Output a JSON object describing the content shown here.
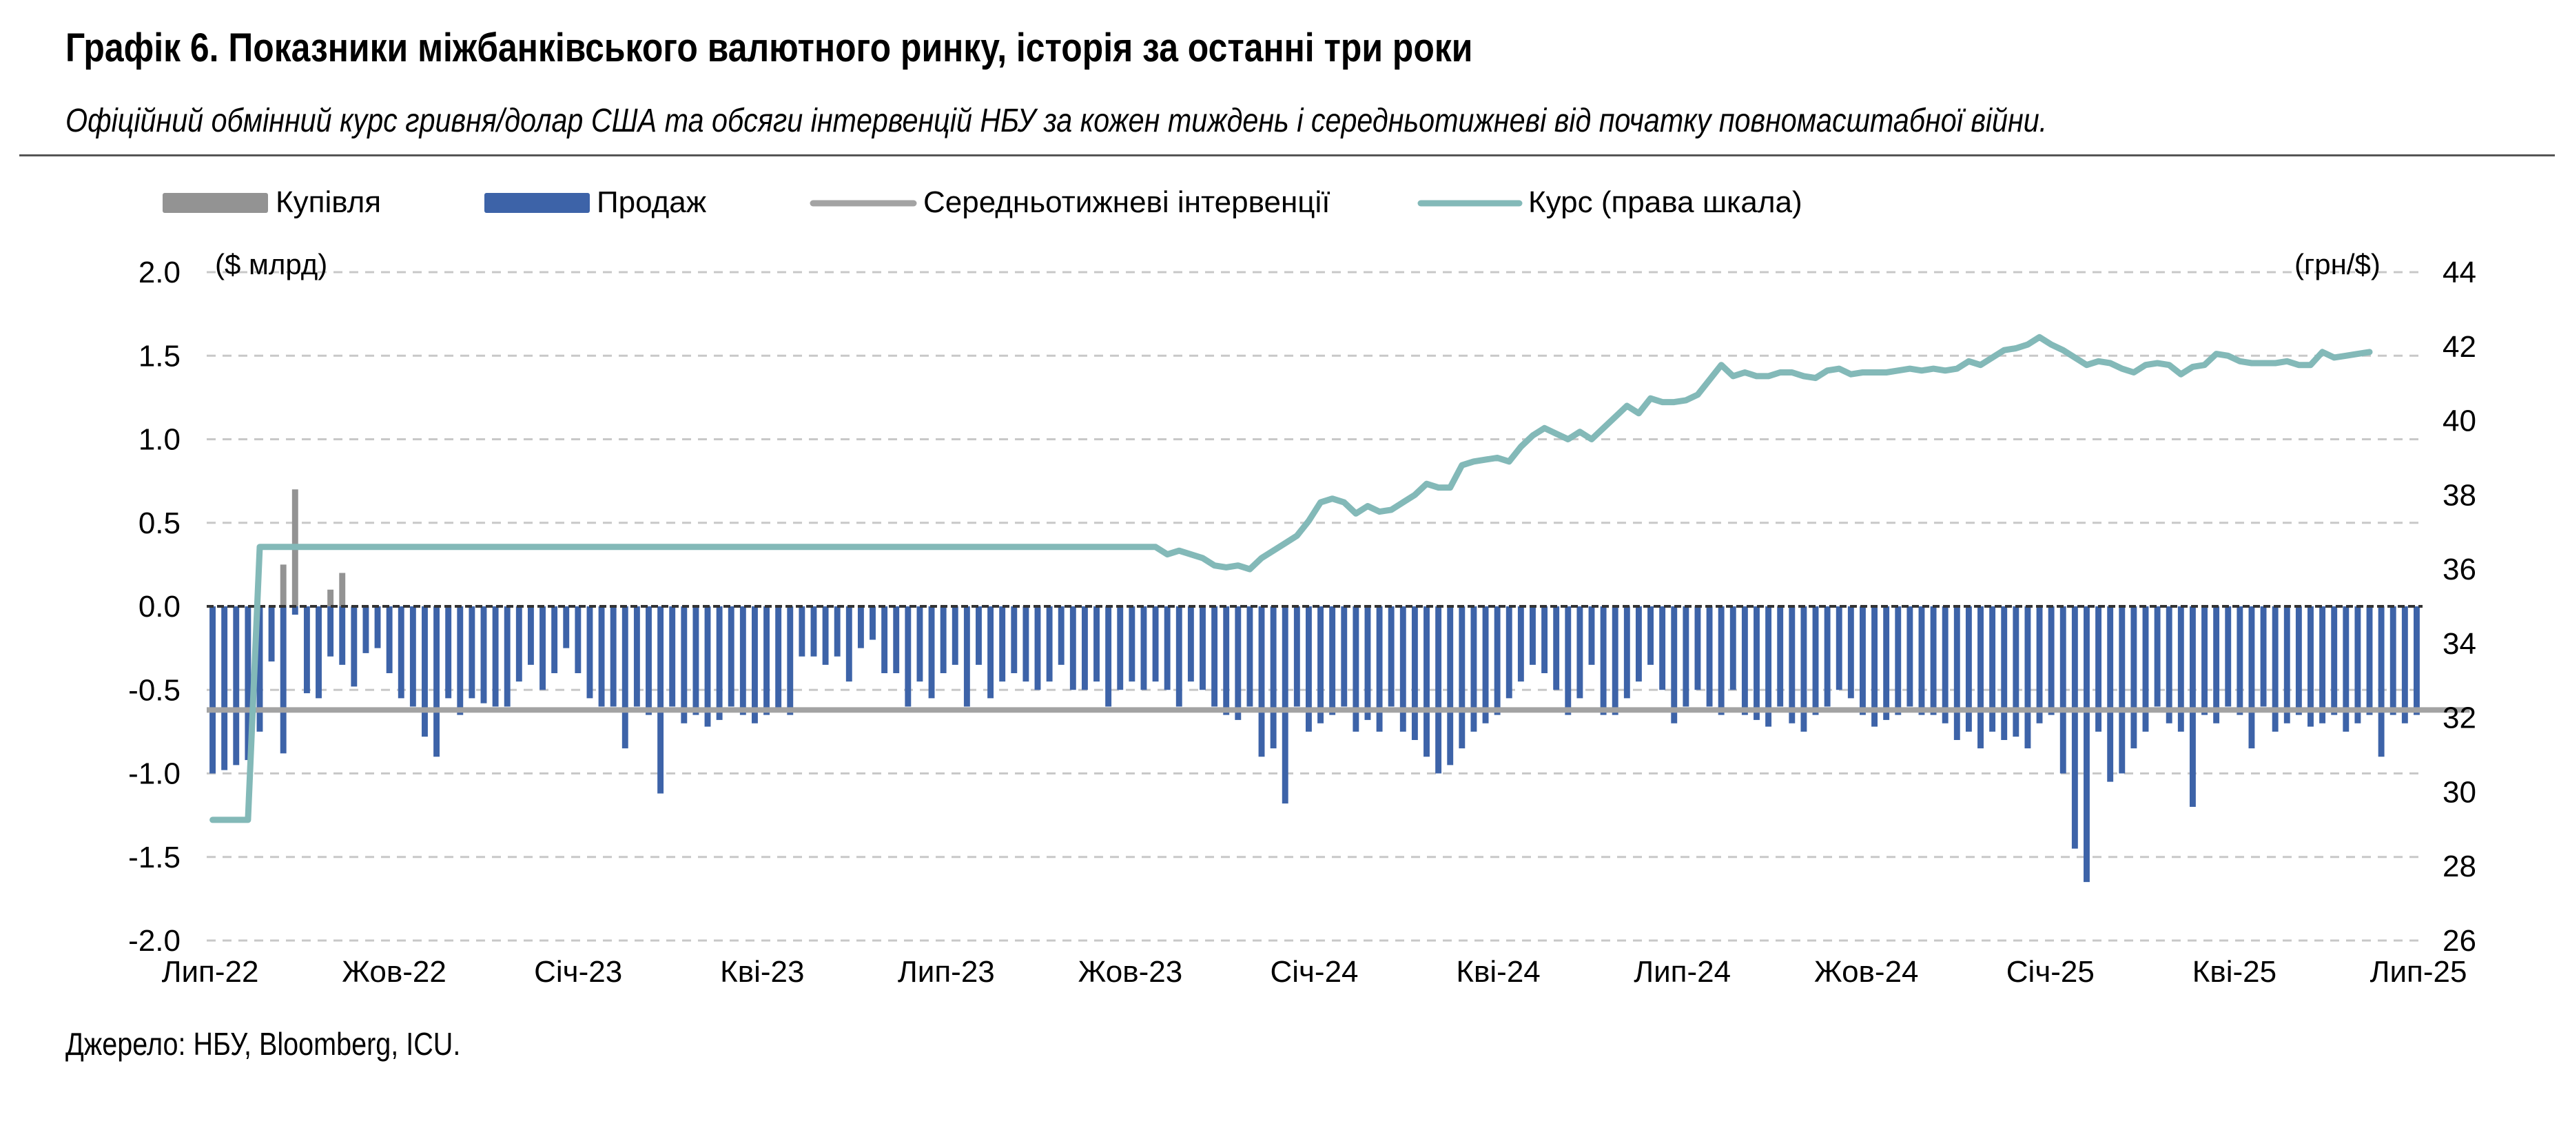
{
  "title": "Графік 6. Показники міжбанківського валютного ринку, історія за останні три роки",
  "subtitle": "Офіційний обмінний курс гривня/долар США та обсяги інтервенцій НБУ за кожен тиждень і середньотижневі від початку повномасштабної війни.",
  "source": "Джерело: НБУ, Bloomberg, ICU.",
  "colors": {
    "purchase": "#939393",
    "sale": "#3d63a8",
    "average": "#a3a3a3",
    "rate": "#83b9b8",
    "grid": "#c8c8c8"
  },
  "chart_data": {
    "type": "bar",
    "left_axis": {
      "unit_label": "($ млрд)",
      "range": [
        -2.0,
        2.0
      ],
      "ticks": [
        "2.0",
        "1.5",
        "1.0",
        "0.5",
        "0.0",
        "-0.5",
        "-1.0",
        "-1.5",
        "-2.0"
      ]
    },
    "right_axis": {
      "unit_label": "(грн/$)",
      "range": [
        26,
        44
      ],
      "ticks": [
        "44",
        "42",
        "40",
        "38",
        "36",
        "34",
        "32",
        "30",
        "28",
        "26"
      ]
    },
    "x_ticks": [
      "Лип-22",
      "Жов-22",
      "Січ-23",
      "Кві-23",
      "Лип-23",
      "Жов-23",
      "Січ-24",
      "Кві-24",
      "Лип-24",
      "Жов-24",
      "Січ-25",
      "Кві-25",
      "Лип-25"
    ],
    "grid": "horizontal dashed",
    "legend_position": "top",
    "series": [
      {
        "name": "Купівля",
        "type": "bar",
        "values": [
          0,
          0,
          0,
          0,
          0,
          0,
          0.25,
          0.7,
          0,
          0,
          0.1,
          0.2,
          0,
          0,
          0,
          0,
          0,
          0,
          0,
          0,
          0,
          0,
          0,
          0,
          0,
          0,
          0,
          0,
          0,
          0,
          0,
          0,
          0,
          0,
          0,
          0,
          0,
          0,
          0,
          0,
          0,
          0,
          0,
          0,
          0,
          0,
          0,
          0,
          0,
          0,
          0,
          0,
          0,
          0,
          0,
          0,
          0,
          0,
          0,
          0,
          0,
          0,
          0,
          0,
          0,
          0,
          0,
          0,
          0,
          0,
          0,
          0,
          0,
          0,
          0,
          0,
          0,
          0,
          0,
          0,
          0,
          0,
          0,
          0,
          0,
          0,
          0,
          0,
          0,
          0,
          0,
          0,
          0,
          0,
          0,
          0,
          0,
          0,
          0,
          0,
          0,
          0,
          0,
          0,
          0,
          0,
          0,
          0,
          0,
          0,
          0,
          0,
          0,
          0,
          0,
          0,
          0,
          0,
          0,
          0,
          0,
          0,
          0,
          0,
          0,
          0,
          0,
          0,
          0,
          0,
          0,
          0,
          0,
          0,
          0,
          0,
          0,
          0,
          0,
          0,
          0,
          0,
          0,
          0,
          0,
          0,
          0,
          0,
          0,
          0,
          0,
          0,
          0,
          0,
          0
        ]
      },
      {
        "name": "Продаж",
        "type": "bar",
        "values": [
          -1.0,
          -0.98,
          -0.95,
          -0.92,
          -0.75,
          -0.33,
          -0.88,
          -0.05,
          -0.52,
          -0.55,
          -0.3,
          -0.35,
          -0.48,
          -0.28,
          -0.25,
          -0.4,
          -0.55,
          -0.6,
          -0.78,
          -0.9,
          -0.55,
          -0.65,
          -0.55,
          -0.58,
          -0.6,
          -0.6,
          -0.45,
          -0.35,
          -0.5,
          -0.4,
          -0.25,
          -0.4,
          -0.55,
          -0.6,
          -0.6,
          -0.85,
          -0.6,
          -0.65,
          -1.12,
          -0.6,
          -0.7,
          -0.65,
          -0.72,
          -0.68,
          -0.6,
          -0.65,
          -0.7,
          -0.65,
          -0.62,
          -0.65,
          -0.3,
          -0.3,
          -0.35,
          -0.3,
          -0.45,
          -0.25,
          -0.2,
          -0.4,
          -0.4,
          -0.6,
          -0.45,
          -0.55,
          -0.4,
          -0.35,
          -0.6,
          -0.35,
          -0.55,
          -0.45,
          -0.4,
          -0.45,
          -0.5,
          -0.45,
          -0.35,
          -0.5,
          -0.5,
          -0.45,
          -0.6,
          -0.5,
          -0.45,
          -0.5,
          -0.45,
          -0.5,
          -0.6,
          -0.45,
          -0.5,
          -0.6,
          -0.65,
          -0.68,
          -0.6,
          -0.9,
          -0.85,
          -1.18,
          -0.6,
          -0.75,
          -0.7,
          -0.65,
          -0.6,
          -0.75,
          -0.68,
          -0.75,
          -0.6,
          -0.75,
          -0.8,
          -0.9,
          -1.0,
          -0.95,
          -0.85,
          -0.75,
          -0.7,
          -0.65,
          -0.55,
          -0.45,
          -0.35,
          -0.4,
          -0.5,
          -0.65,
          -0.55,
          -0.35,
          -0.65,
          -0.65,
          -0.55,
          -0.45,
          -0.35,
          -0.5,
          -0.7,
          -0.6,
          -0.5,
          -0.6,
          -0.65,
          -0.5,
          -0.65,
          -0.68,
          -0.72,
          -0.6,
          -0.7,
          -0.75,
          -0.65,
          -0.6,
          -0.5,
          -0.55,
          -0.65,
          -0.72,
          -0.68,
          -0.65,
          -0.6,
          -0.65,
          -0.65,
          -0.7,
          -0.8,
          -0.75,
          -0.85,
          -0.75,
          -0.8,
          -0.78,
          -0.85,
          -0.7,
          -0.65,
          -1.0,
          -1.45,
          -1.65,
          -0.75,
          -1.05,
          -1.0,
          -0.85,
          -0.75,
          -0.6,
          -0.7,
          -0.75,
          -1.2,
          -0.65,
          -0.7,
          -0.6,
          -0.65,
          -0.85,
          -0.6,
          -0.75,
          -0.7,
          -0.65,
          -0.72,
          -0.7,
          -0.65,
          -0.75,
          -0.7,
          -0.65,
          -0.9,
          -0.65,
          -0.7,
          -0.65
        ]
      },
      {
        "name": "Середньотижневі інтервенції",
        "type": "line",
        "points": [
          [
            0,
            -0.62
          ],
          [
            191,
            -0.62
          ]
        ]
      },
      {
        "name": "Курс (права шкала)",
        "type": "line",
        "axis": "right",
        "points": [
          [
            0,
            29.25
          ],
          [
            3,
            29.25
          ],
          [
            4,
            36.6
          ],
          [
            80,
            36.6
          ],
          [
            81,
            36.4
          ],
          [
            82,
            36.5
          ],
          [
            84,
            36.3
          ],
          [
            85,
            36.1
          ],
          [
            86,
            36.05
          ],
          [
            87,
            36.1
          ],
          [
            88,
            36.0
          ],
          [
            89,
            36.3
          ],
          [
            90,
            36.5
          ],
          [
            91,
            36.7
          ],
          [
            92,
            36.9
          ],
          [
            93,
            37.3
          ],
          [
            94,
            37.8
          ],
          [
            95,
            37.9
          ],
          [
            96,
            37.8
          ],
          [
            97,
            37.5
          ],
          [
            98,
            37.7
          ],
          [
            99,
            37.55
          ],
          [
            100,
            37.6
          ],
          [
            101,
            37.8
          ],
          [
            102,
            38.0
          ],
          [
            103,
            38.3
          ],
          [
            104,
            38.2
          ],
          [
            105,
            38.2
          ],
          [
            106,
            38.8
          ],
          [
            107,
            38.9
          ],
          [
            108,
            38.95
          ],
          [
            109,
            39.0
          ],
          [
            110,
            38.9
          ],
          [
            111,
            39.3
          ],
          [
            112,
            39.6
          ],
          [
            113,
            39.8
          ],
          [
            114,
            39.65
          ],
          [
            115,
            39.5
          ],
          [
            116,
            39.7
          ],
          [
            117,
            39.5
          ],
          [
            118,
            39.8
          ],
          [
            119,
            40.1
          ],
          [
            120,
            40.4
          ],
          [
            121,
            40.2
          ],
          [
            122,
            40.6
          ],
          [
            123,
            40.5
          ],
          [
            124,
            40.5
          ],
          [
            125,
            40.55
          ],
          [
            126,
            40.7
          ],
          [
            127,
            41.1
          ],
          [
            128,
            41.5
          ],
          [
            129,
            41.2
          ],
          [
            130,
            41.3
          ],
          [
            131,
            41.2
          ],
          [
            132,
            41.2
          ],
          [
            133,
            41.3
          ],
          [
            134,
            41.3
          ],
          [
            135,
            41.2
          ],
          [
            136,
            41.15
          ],
          [
            137,
            41.35
          ],
          [
            138,
            41.4
          ],
          [
            139,
            41.25
          ],
          [
            140,
            41.3
          ],
          [
            141,
            41.3
          ],
          [
            142,
            41.3
          ],
          [
            143,
            41.35
          ],
          [
            144,
            41.4
          ],
          [
            145,
            41.35
          ],
          [
            146,
            41.4
          ],
          [
            147,
            41.35
          ],
          [
            148,
            41.4
          ],
          [
            149,
            41.6
          ],
          [
            150,
            41.5
          ],
          [
            151,
            41.7
          ],
          [
            152,
            41.9
          ],
          [
            153,
            41.95
          ],
          [
            154,
            42.05
          ],
          [
            155,
            42.25
          ],
          [
            156,
            42.05
          ],
          [
            157,
            41.9
          ],
          [
            158,
            41.7
          ],
          [
            159,
            41.5
          ],
          [
            160,
            41.6
          ],
          [
            161,
            41.55
          ],
          [
            162,
            41.4
          ],
          [
            163,
            41.3
          ],
          [
            164,
            41.5
          ],
          [
            165,
            41.55
          ],
          [
            166,
            41.5
          ],
          [
            167,
            41.25
          ],
          [
            168,
            41.45
          ],
          [
            169,
            41.5
          ],
          [
            170,
            41.8
          ],
          [
            171,
            41.75
          ],
          [
            172,
            41.6
          ],
          [
            173,
            41.55
          ],
          [
            174,
            41.55
          ],
          [
            175,
            41.55
          ],
          [
            176,
            41.6
          ],
          [
            177,
            41.5
          ],
          [
            178,
            41.5
          ],
          [
            179,
            41.85
          ],
          [
            180,
            41.7
          ],
          [
            181,
            41.75
          ],
          [
            182,
            41.8
          ],
          [
            183,
            41.85
          ]
        ]
      }
    ]
  }
}
